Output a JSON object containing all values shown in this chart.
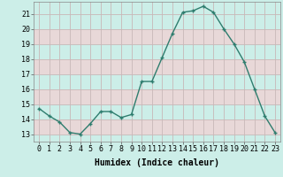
{
  "x": [
    0,
    1,
    2,
    3,
    4,
    5,
    6,
    7,
    8,
    9,
    10,
    11,
    12,
    13,
    14,
    15,
    16,
    17,
    18,
    19,
    20,
    21,
    22,
    23
  ],
  "y": [
    14.7,
    14.2,
    13.8,
    13.1,
    13.0,
    13.7,
    14.5,
    14.5,
    14.1,
    14.3,
    16.5,
    16.5,
    18.1,
    19.7,
    21.1,
    21.2,
    21.5,
    21.1,
    20.0,
    19.0,
    17.8,
    16.0,
    14.2,
    13.1
  ],
  "xlim": [
    -0.5,
    23.5
  ],
  "ylim": [
    12.5,
    21.8
  ],
  "yticks": [
    13,
    14,
    15,
    16,
    17,
    18,
    19,
    20,
    21
  ],
  "xticks": [
    0,
    1,
    2,
    3,
    4,
    5,
    6,
    7,
    8,
    9,
    10,
    11,
    12,
    13,
    14,
    15,
    16,
    17,
    18,
    19,
    20,
    21,
    22,
    23
  ],
  "xlabel": "Humidex (Indice chaleur)",
  "line_color": "#2e7d6e",
  "marker": "+",
  "marker_size": 4,
  "bg_color": "#cceee8",
  "grid_color": "#c8b8b8",
  "band_color_even": "#cceee8",
  "band_color_odd": "#ddeae8",
  "title": "",
  "tick_fontsize": 6,
  "label_fontsize": 7
}
